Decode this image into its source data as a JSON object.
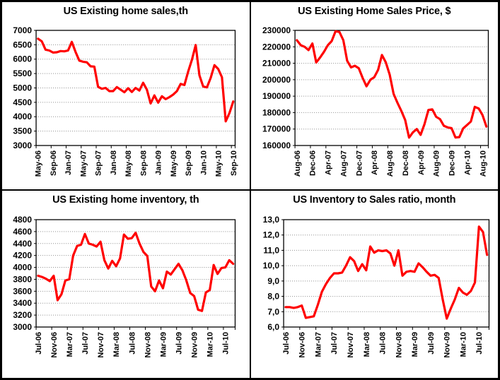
{
  "colors": {
    "line": "#ff0000",
    "grid": "#8c8c8c",
    "axis": "#000000",
    "background": "#ffffff",
    "frame": "#000000"
  },
  "chart_data": [
    {
      "type": "line",
      "title": "US Existing home sales,th",
      "line_color": "#ff0000",
      "grid": true,
      "legend": "none",
      "x_label_rotation": 90,
      "x_tick_every": 4,
      "y_min": 3000,
      "y_max": 7000,
      "y_tick_values": [
        3000,
        3500,
        4000,
        4500,
        5000,
        5500,
        6000,
        6500,
        7000
      ],
      "y_tick_labels": [
        "3000",
        "3500",
        "4000",
        "4500",
        "5000",
        "5500",
        "6000",
        "6500",
        "7000"
      ],
      "x": [
        "May-06",
        "Jun-06",
        "Jul-06",
        "Aug-06",
        "Sep-06",
        "Oct-06",
        "Nov-06",
        "Dec-06",
        "Jan-07",
        "Feb-07",
        "Mar-07",
        "Apr-07",
        "May-07",
        "Jun-07",
        "Jul-07",
        "Aug-07",
        "Sep-07",
        "Oct-07",
        "Nov-07",
        "Dec-07",
        "Jan-08",
        "Feb-08",
        "Mar-08",
        "Apr-08",
        "May-08",
        "Jun-08",
        "Jul-08",
        "Aug-08",
        "Sep-08",
        "Oct-08",
        "Nov-08",
        "Dec-08",
        "Jan-09",
        "Feb-09",
        "Mar-09",
        "Apr-09",
        "May-09",
        "Jun-09",
        "Jul-09",
        "Aug-09",
        "Sep-09",
        "Oct-09",
        "Nov-09",
        "Dec-09",
        "Jan-10",
        "Feb-10",
        "Mar-10",
        "Apr-10",
        "May-10",
        "Jun-10",
        "Jul-10",
        "Aug-10",
        "Sep-10"
      ],
      "values": [
        6710,
        6620,
        6330,
        6300,
        6230,
        6240,
        6280,
        6270,
        6300,
        6600,
        6250,
        5950,
        5910,
        5890,
        5750,
        5740,
        5040,
        4970,
        5000,
        4890,
        4890,
        5030,
        4940,
        4850,
        4990,
        4860,
        5000,
        4910,
        5180,
        4940,
        4460,
        4740,
        4490,
        4710,
        4610,
        4680,
        4770,
        4890,
        5140,
        5100,
        5570,
        5980,
        6490,
        5440,
        5050,
        5020,
        5350,
        5790,
        5660,
        5370,
        3840,
        4130,
        4530
      ]
    },
    {
      "type": "line",
      "title": "US Existing Home Sales Price, $",
      "line_color": "#ff0000",
      "grid": true,
      "legend": "none",
      "x_label_rotation": 90,
      "x_tick_every": 4,
      "y_min": 160000,
      "y_max": 230000,
      "y_tick_values": [
        160000,
        170000,
        180000,
        190000,
        200000,
        210000,
        220000,
        230000
      ],
      "y_tick_labels": [
        "160000",
        "170000",
        "180000",
        "190000",
        "200000",
        "210000",
        "220000",
        "230000"
      ],
      "x": [
        "Aug-06",
        "Sep-06",
        "Oct-06",
        "Nov-06",
        "Dec-06",
        "Jan-07",
        "Feb-07",
        "Mar-07",
        "Apr-07",
        "May-07",
        "Jun-07",
        "Jul-07",
        "Aug-07",
        "Sep-07",
        "Oct-07",
        "Nov-07",
        "Dec-07",
        "Jan-08",
        "Feb-08",
        "Mar-08",
        "Apr-08",
        "May-08",
        "Jun-08",
        "Jul-08",
        "Aug-08",
        "Sep-08",
        "Oct-08",
        "Nov-08",
        "Dec-08",
        "Jan-09",
        "Feb-09",
        "Mar-09",
        "Apr-09",
        "May-09",
        "Jun-09",
        "Jul-09",
        "Aug-09",
        "Sep-09",
        "Oct-09",
        "Nov-09",
        "Dec-09",
        "Jan-10",
        "Feb-10",
        "Mar-10",
        "Apr-10",
        "May-10",
        "Jun-10",
        "Jul-10",
        "Aug-10",
        "Sep-10"
      ],
      "values": [
        224000,
        221000,
        220000,
        218000,
        222000,
        210500,
        213500,
        217000,
        221000,
        223500,
        229500,
        229000,
        224000,
        211500,
        207500,
        208500,
        207000,
        201000,
        196000,
        200000,
        201500,
        206000,
        215000,
        210500,
        203000,
        191500,
        186000,
        181000,
        175500,
        164800,
        168000,
        170000,
        166500,
        173000,
        181600,
        182000,
        177500,
        176000,
        172000,
        171000,
        170500,
        164900,
        165100,
        170400,
        172500,
        174600,
        183500,
        182500,
        178500,
        171500
      ]
    },
    {
      "type": "line",
      "title": "US Existing home inventory, th",
      "line_color": "#ff0000",
      "grid": true,
      "legend": "none",
      "x_label_rotation": 90,
      "x_tick_every": 4,
      "y_min": 3000,
      "y_max": 4800,
      "y_tick_values": [
        3000,
        3200,
        3400,
        3600,
        3800,
        4000,
        4200,
        4400,
        4600,
        4800
      ],
      "y_tick_labels": [
        "3000",
        "3200",
        "3400",
        "3600",
        "3800",
        "4000",
        "4200",
        "4400",
        "4600",
        "4800"
      ],
      "x": [
        "Jul-06",
        "Aug-06",
        "Sep-06",
        "Oct-06",
        "Nov-06",
        "Dec-06",
        "Jan-07",
        "Feb-07",
        "Mar-07",
        "Apr-07",
        "May-07",
        "Jun-07",
        "Jul-07",
        "Aug-07",
        "Sep-07",
        "Oct-07",
        "Nov-07",
        "Dec-07",
        "Jan-08",
        "Feb-08",
        "Mar-08",
        "Apr-08",
        "May-08",
        "Jun-08",
        "Jul-08",
        "Aug-08",
        "Sep-08",
        "Oct-08",
        "Nov-08",
        "Dec-08",
        "Jan-09",
        "Feb-09",
        "Mar-09",
        "Apr-09",
        "May-09",
        "Jun-09",
        "Jul-09",
        "Aug-09",
        "Sep-09",
        "Oct-09",
        "Nov-09",
        "Dec-09",
        "Jan-10",
        "Feb-10",
        "Mar-10",
        "Apr-10",
        "May-10",
        "Jun-10",
        "Jul-10",
        "Aug-10",
        "Sep-10"
      ],
      "values": [
        3860,
        3840,
        3810,
        3770,
        3860,
        3450,
        3550,
        3780,
        3800,
        4200,
        4360,
        4380,
        4560,
        4400,
        4380,
        4350,
        4430,
        4120,
        3980,
        4110,
        4020,
        4150,
        4550,
        4480,
        4490,
        4580,
        4400,
        4260,
        4190,
        3680,
        3600,
        3780,
        3650,
        3930,
        3880,
        3970,
        4060,
        3950,
        3780,
        3570,
        3520,
        3290,
        3270,
        3580,
        3620,
        4040,
        3890,
        3990,
        4000,
        4120,
        4060
      ]
    },
    {
      "type": "line",
      "title": "US Inventory to Sales ratio, month",
      "line_color": "#ff0000",
      "grid": true,
      "legend": "none",
      "x_label_rotation": 90,
      "x_tick_every": 4,
      "y_min": 6,
      "y_max": 13,
      "y_tick_values": [
        6,
        7,
        8,
        9,
        10,
        11,
        12,
        13
      ],
      "y_tick_labels": [
        "6,0",
        "7,0",
        "8,0",
        "9,0",
        "10,0",
        "11,0",
        "12,0",
        "13,0"
      ],
      "x": [
        "Jul-06",
        "Aug-06",
        "Sep-06",
        "Oct-06",
        "Nov-06",
        "Dec-06",
        "Jan-07",
        "Feb-07",
        "Mar-07",
        "Apr-07",
        "May-07",
        "Jun-07",
        "Jul-07",
        "Aug-07",
        "Sep-07",
        "Oct-07",
        "Nov-07",
        "Dec-07",
        "Jan-08",
        "Feb-08",
        "Mar-08",
        "Apr-08",
        "May-08",
        "Jun-08",
        "Jul-08",
        "Aug-08",
        "Sep-08",
        "Oct-08",
        "Nov-08",
        "Dec-08",
        "Jan-09",
        "Feb-09",
        "Mar-09",
        "Apr-09",
        "May-09",
        "Jun-09",
        "Jul-09",
        "Aug-09",
        "Sep-09",
        "Oct-09",
        "Nov-09",
        "Dec-09",
        "Jan-10",
        "Feb-10",
        "Mar-10",
        "Apr-10",
        "May-10",
        "Jun-10",
        "Jul-10",
        "Aug-10",
        "Sep-10"
      ],
      "values": [
        7.3,
        7.3,
        7.25,
        7.3,
        7.4,
        6.6,
        6.65,
        6.7,
        7.45,
        8.3,
        8.8,
        9.2,
        9.5,
        9.5,
        9.55,
        10.0,
        10.55,
        10.3,
        9.65,
        10.1,
        9.7,
        11.25,
        10.85,
        11.0,
        10.95,
        11.0,
        10.8,
        10.0,
        11.0,
        9.35,
        9.6,
        9.65,
        9.6,
        10.15,
        9.9,
        9.6,
        9.35,
        9.4,
        9.2,
        7.8,
        6.55,
        7.2,
        7.8,
        8.55,
        8.25,
        8.1,
        8.35,
        8.9,
        12.55,
        12.2,
        10.7
      ]
    }
  ]
}
